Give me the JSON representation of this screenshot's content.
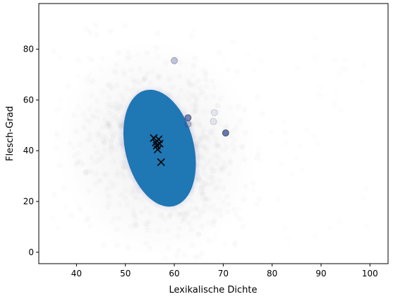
{
  "chart_data": {
    "type": "scatter",
    "title": "",
    "xlabel": "Lexikalische Dichte",
    "ylabel": "Flesch-Grad",
    "xlim": [
      32.3,
      103.7
    ],
    "ylim": [
      -4.5,
      98
    ],
    "x_ticks": [
      40,
      50,
      60,
      70,
      80,
      90,
      100
    ],
    "y_ticks": [
      0,
      20,
      40,
      60,
      80
    ],
    "x_tick_labels": [
      "40",
      "50",
      "60",
      "70",
      "80",
      "90",
      "100"
    ],
    "y_tick_labels": [
      "0",
      "20",
      "40",
      "60",
      "80"
    ],
    "grid": false,
    "legend": "none",
    "colors": {
      "cloud_fill": "#1f77b4",
      "cloud_halo": "#7b6fc9",
      "background_noise": "#9a9a9a",
      "circle_marker": "#4a5fa8",
      "cross_marker": "#000000"
    },
    "distribution": {
      "description_free": true,
      "center": [
        57,
        41
      ],
      "core_x_range": [
        50,
        64
      ],
      "core_y_range": [
        18,
        65
      ],
      "diffuse_x_range": [
        35,
        100
      ],
      "diffuse_y_range": [
        2,
        88
      ]
    },
    "series": [
      {
        "marker": "circle",
        "points": [
          {
            "x": 60.0,
            "y": 75.5,
            "alpha": 0.35
          },
          {
            "x": 62.8,
            "y": 53.0,
            "alpha": 0.75
          },
          {
            "x": 62.8,
            "y": 50.5,
            "alpha": 0.35
          },
          {
            "x": 70.5,
            "y": 47.0,
            "alpha": 0.85
          },
          {
            "x": 68.2,
            "y": 55.0,
            "alpha": 0.12
          },
          {
            "x": 68.0,
            "y": 51.5,
            "alpha": 0.12
          }
        ]
      },
      {
        "marker": "x",
        "points": [
          {
            "x": 55.8,
            "y": 45.0
          },
          {
            "x": 56.8,
            "y": 44.5
          },
          {
            "x": 56.2,
            "y": 43.2
          },
          {
            "x": 57.0,
            "y": 42.8
          },
          {
            "x": 56.4,
            "y": 42.0
          },
          {
            "x": 56.6,
            "y": 40.5
          },
          {
            "x": 57.3,
            "y": 35.5
          }
        ]
      }
    ]
  }
}
